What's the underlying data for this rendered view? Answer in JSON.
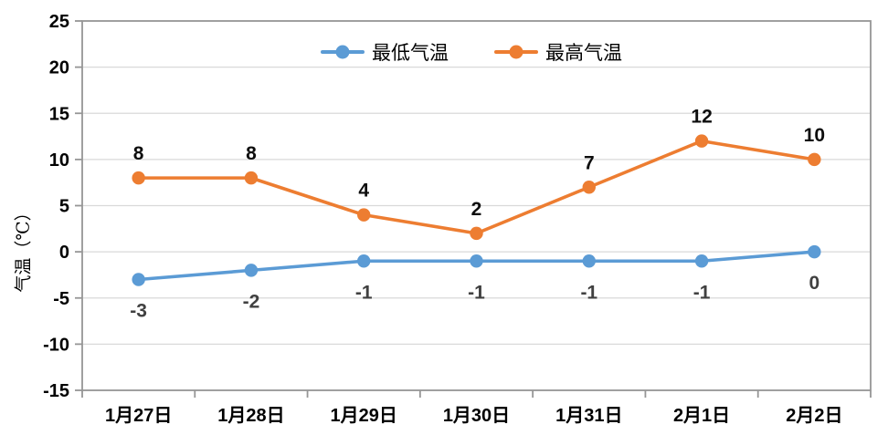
{
  "chart_data": {
    "type": "line",
    "title": "",
    "ylabel": "气温（℃）",
    "xlabel": "",
    "categories": [
      "1月27日",
      "1月28日",
      "1月29日",
      "1月30日",
      "1月31日",
      "2月1日",
      "2月2日"
    ],
    "series": [
      {
        "name": "最低气温",
        "values": [
          -3,
          -2,
          -1,
          -1,
          -1,
          -1,
          0
        ],
        "color": "#5B9BD5",
        "label_color": "#404040",
        "label_position": "below"
      },
      {
        "name": "最高气温",
        "values": [
          8,
          8,
          4,
          2,
          7,
          12,
          10
        ],
        "color": "#ED7D31",
        "label_color": "#0D0D0D",
        "label_position": "above"
      }
    ],
    "ylim": [
      -15,
      25
    ],
    "y_ticks": [
      25,
      20,
      15,
      10,
      5,
      0,
      -5,
      -10,
      -15
    ],
    "grid": true,
    "data_labels": true,
    "legend_position": "top-center"
  },
  "style": {
    "gridline_color": "#D9D9D9",
    "axis_color": "#969696",
    "background": "#FFFFFF"
  }
}
